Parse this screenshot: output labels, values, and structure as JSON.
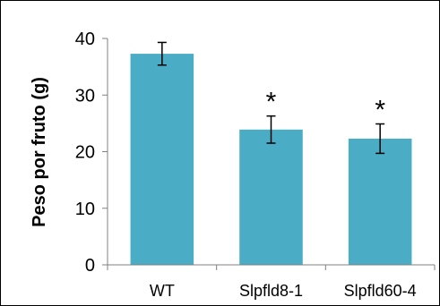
{
  "chart_data": {
    "type": "bar",
    "title": "",
    "xlabel": "",
    "ylabel": "Peso por fruto (g)",
    "categories": [
      "WT",
      "Slpfld8-1",
      "Slpfld60-4"
    ],
    "values": [
      37.3,
      23.9,
      22.3
    ],
    "error": [
      2.0,
      2.4,
      2.6
    ],
    "annotations": [
      "",
      "*",
      "*"
    ],
    "ylim": [
      0,
      40
    ],
    "yticks": [
      "0",
      "10",
      "20",
      "30",
      "40"
    ],
    "grid": false,
    "legend": "none",
    "bar_color": "#4bacc6"
  }
}
